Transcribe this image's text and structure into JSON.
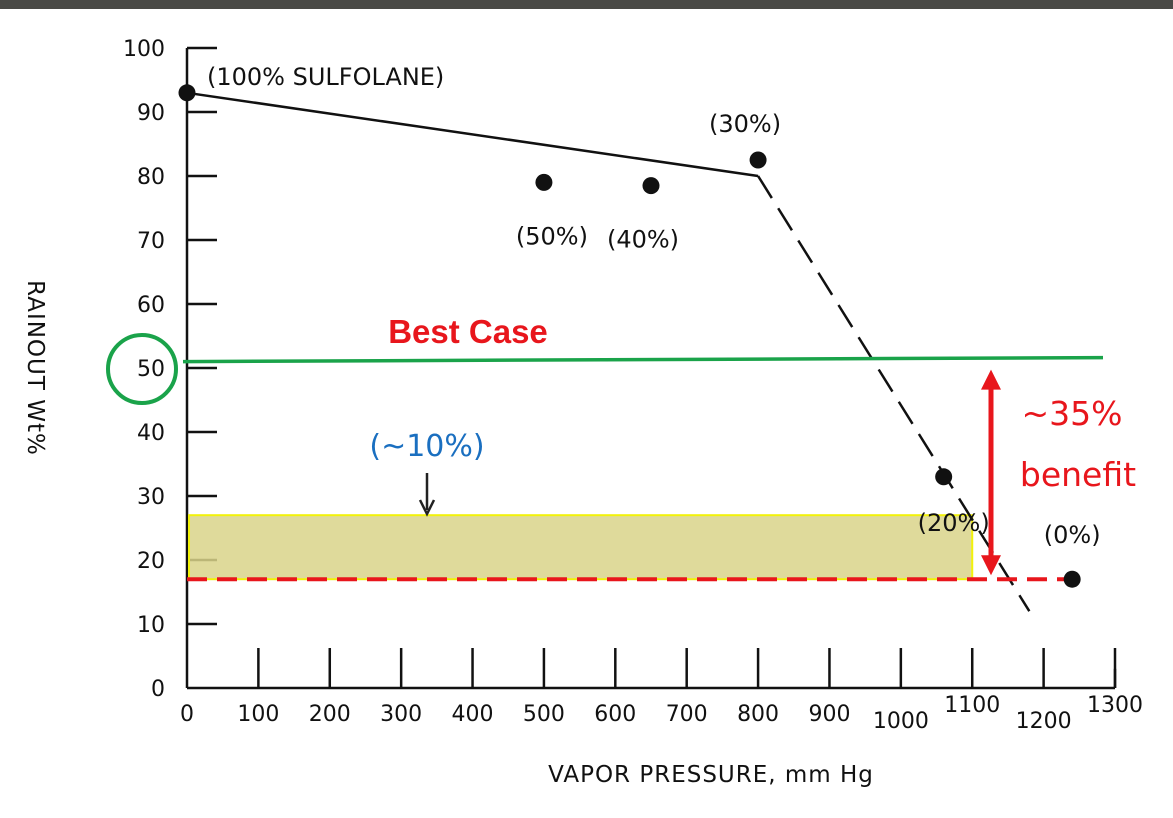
{
  "chart_data": {
    "type": "scatter",
    "title": "",
    "xlabel": "VAPOR PRESSURE, mm Hg",
    "ylabel": "RAINOUT Wt%",
    "xlim": [
      0,
      1300
    ],
    "ylim": [
      0,
      100
    ],
    "x_ticks": [
      "0",
      "100",
      "200",
      "300",
      "400",
      "500",
      "600",
      "700",
      "800",
      "900",
      "1000",
      "1100",
      "1200",
      "1300"
    ],
    "y_ticks": [
      "0",
      "10",
      "20",
      "30",
      "40",
      "50",
      "60",
      "70",
      "80",
      "90",
      "100"
    ],
    "points": [
      {
        "x": 0,
        "y": 93,
        "label": "(100% SULFOLANE)"
      },
      {
        "x": 500,
        "y": 79,
        "label": "(50%)"
      },
      {
        "x": 650,
        "y": 78.5,
        "label": "(40%)"
      },
      {
        "x": 800,
        "y": 82.5,
        "label": "(30%)"
      },
      {
        "x": 1060,
        "y": 33,
        "label": "(20%)"
      },
      {
        "x": 1240,
        "y": 17,
        "label": "(0%)"
      }
    ],
    "solid_line": [
      {
        "x": 0,
        "y": 93
      },
      {
        "x": 800,
        "y": 80
      }
    ],
    "dashed_line": [
      {
        "x": 800,
        "y": 80
      },
      {
        "x": 1180,
        "y": 12
      }
    ],
    "best_case_line": {
      "y": 51,
      "label": "Best Case",
      "color": "#1aa34a"
    },
    "highlight_circle_tick": "50",
    "red_dashed_line": {
      "y": 17,
      "color": "#e8161c"
    },
    "band": {
      "x0": 0,
      "x1": 1100,
      "y0": 17,
      "y1": 27,
      "label": "(~10%)",
      "fill": "#d9d38a",
      "border": "#f2f20a"
    },
    "benefit": {
      "y_top": 51,
      "y_bottom": 17,
      "line1": "~35%",
      "line2": "benefit",
      "color": "#e8161c"
    }
  }
}
